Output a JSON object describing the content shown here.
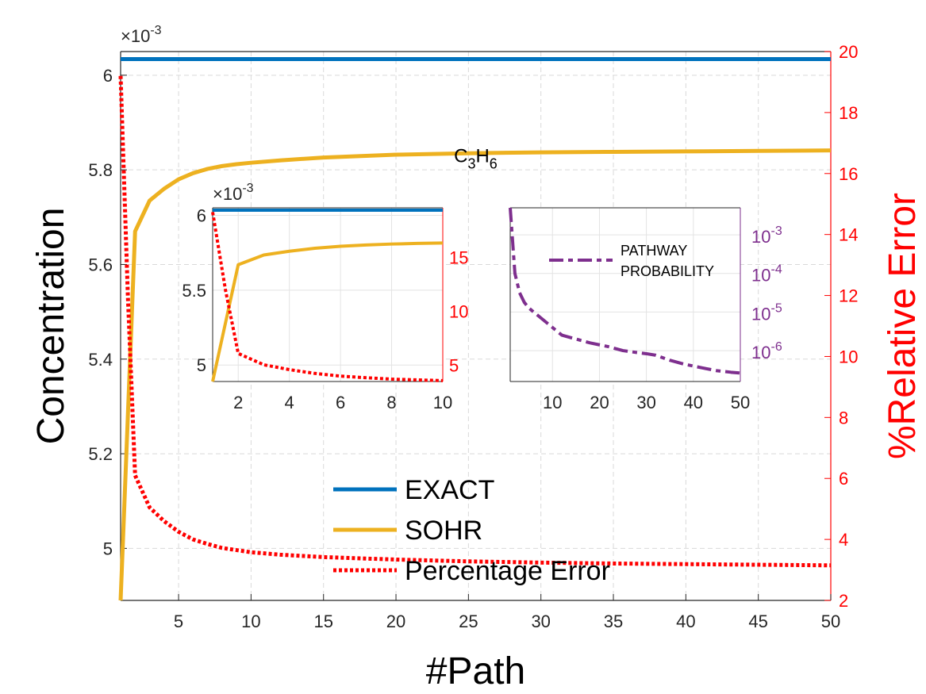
{
  "chart_data": [
    {
      "type": "line",
      "x_label": "#Path",
      "y_label": "Concentration",
      "y2_label": "%Relative Error",
      "xlim": [
        1,
        50
      ],
      "ylim": [
        4.89,
        6.05
      ],
      "y2lim": [
        2,
        20
      ],
      "y_multiplier": "×10",
      "y_multiplier_exp": "-3",
      "x_ticks": [
        5,
        10,
        15,
        20,
        25,
        30,
        35,
        40,
        45,
        50
      ],
      "y_ticks": [
        5,
        5.2,
        5.4,
        5.6,
        5.8,
        6
      ],
      "y_tick_labels": [
        "5",
        "5.2",
        "5.4",
        "5.6",
        "5.8",
        "6"
      ],
      "y2_ticks": [
        2,
        4,
        6,
        8,
        10,
        12,
        14,
        16,
        18,
        20
      ],
      "grid": true,
      "legend_position": "bottom-center",
      "annotation": {
        "text": "C",
        "sub1": "3",
        "mid": "H",
        "sub2": "6",
        "x": 24,
        "y": 5.836
      },
      "series": [
        {
          "name": "EXACT",
          "axis": "left",
          "color": "#0072bd",
          "style": "solid",
          "x": [
            1,
            50
          ],
          "y": [
            6.034,
            6.034
          ]
        },
        {
          "name": "SOHR",
          "axis": "left",
          "color": "#edb120",
          "style": "solid",
          "x": [
            1,
            2,
            3,
            4,
            5,
            6,
            7,
            8,
            9,
            10,
            12,
            15,
            20,
            25,
            30,
            35,
            40,
            45,
            50
          ],
          "y": [
            4.89,
            5.67,
            5.735,
            5.76,
            5.78,
            5.793,
            5.802,
            5.808,
            5.812,
            5.815,
            5.82,
            5.826,
            5.832,
            5.835,
            5.837,
            5.838,
            5.839,
            5.84,
            5.841
          ]
        },
        {
          "name": "Percentage Error",
          "axis": "right",
          "color": "#ff0000",
          "style": "dotted",
          "x": [
            1,
            1.5,
            2,
            3,
            4,
            5,
            6,
            7,
            8,
            9,
            10,
            12,
            15,
            20,
            25,
            30,
            35,
            40,
            45,
            50
          ],
          "y": [
            19.2,
            12,
            6.1,
            5.05,
            4.6,
            4.25,
            4.0,
            3.85,
            3.72,
            3.65,
            3.58,
            3.5,
            3.42,
            3.34,
            3.28,
            3.24,
            3.21,
            3.19,
            3.17,
            3.15
          ]
        }
      ]
    },
    {
      "type": "line",
      "xlim": [
        1,
        10
      ],
      "ylim": [
        4.89,
        6.05
      ],
      "y2lim": [
        3.5,
        19.6
      ],
      "y_multiplier": "×10",
      "y_multiplier_exp": "-3",
      "x_ticks": [
        2,
        4,
        6,
        8,
        10
      ],
      "y_ticks": [
        5,
        5.5,
        6
      ],
      "y_tick_labels": [
        "5",
        "5.5",
        "6"
      ],
      "y2_ticks": [
        5,
        10,
        15
      ],
      "grid": true,
      "series": [
        {
          "axis": "left",
          "color": "#0072bd",
          "style": "solid",
          "x": [
            1,
            10
          ],
          "y": [
            6.034,
            6.034
          ]
        },
        {
          "axis": "left",
          "color": "#edb120",
          "style": "solid",
          "x": [
            1,
            2,
            3,
            4,
            5,
            6,
            7,
            8,
            9,
            10
          ],
          "y": [
            4.89,
            5.67,
            5.735,
            5.76,
            5.78,
            5.793,
            5.802,
            5.808,
            5.812,
            5.815
          ]
        },
        {
          "axis": "right",
          "color": "#ff0000",
          "style": "dotted",
          "x": [
            1,
            1.5,
            2,
            3,
            4,
            5,
            6,
            7,
            8,
            9,
            10
          ],
          "y": [
            19.2,
            12,
            6.1,
            5.05,
            4.6,
            4.25,
            4.0,
            3.85,
            3.72,
            3.65,
            3.58
          ]
        }
      ]
    },
    {
      "type": "line",
      "xlim": [
        1,
        50
      ],
      "y2lim_log10": [
        -6.8,
        -2.3
      ],
      "y2_log": true,
      "x_ticks": [
        10,
        20,
        30,
        40,
        50
      ],
      "y2_ticks": [
        -3,
        -4,
        -5,
        -6
      ],
      "y2_tick_base": "10",
      "grid": true,
      "legend_position": "top-right",
      "series": [
        {
          "name": "PATHWAY",
          "name_line2": "PROBABILITY",
          "axis": "right",
          "color": "#7e2f8e",
          "style": "dashdot",
          "x": [
            1,
            2,
            3,
            4,
            5,
            6,
            7,
            8,
            9,
            10,
            12,
            15,
            18,
            20,
            22,
            25,
            28,
            30,
            32,
            35,
            38,
            40,
            42,
            45,
            48,
            50
          ],
          "log10_y": [
            -2.3,
            -4.0,
            -4.5,
            -4.75,
            -4.9,
            -5.0,
            -5.1,
            -5.2,
            -5.3,
            -5.4,
            -5.6,
            -5.7,
            -5.8,
            -5.85,
            -5.9,
            -6.0,
            -6.05,
            -6.08,
            -6.12,
            -6.25,
            -6.35,
            -6.4,
            -6.45,
            -6.52,
            -6.56,
            -6.58
          ]
        }
      ]
    }
  ]
}
